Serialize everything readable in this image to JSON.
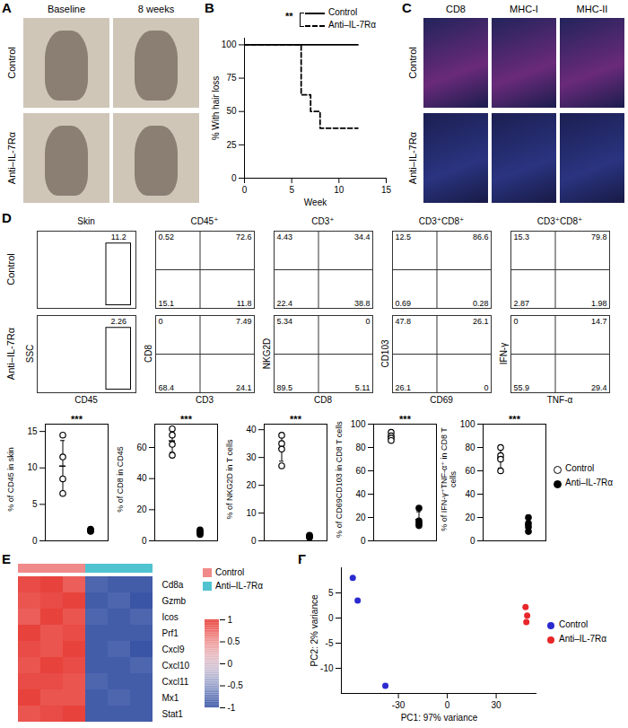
{
  "image_panels": [
    {
      "panel": "A",
      "columns": [
        "Baseline",
        "8 weeks"
      ],
      "rows": [
        "Control",
        "Anti–IL-7Rα"
      ]
    },
    {
      "panel": "C",
      "columns": [
        "CD8",
        "MHC-I",
        "MHC-II"
      ],
      "rows": [
        "Control",
        "Anti–IL-7Rα"
      ]
    }
  ],
  "chart_data": [
    {
      "type": "line",
      "panel": "B",
      "x_label": "Week",
      "y_label": "% With hair loss",
      "xlim": [
        0,
        15
      ],
      "xticks": [
        0,
        5,
        10,
        15
      ],
      "ylim": [
        0,
        105
      ],
      "yticks": [
        0,
        25,
        50,
        75,
        100
      ],
      "annotation": "**",
      "legend": "top-right",
      "series": [
        {
          "name": "Control",
          "line_style": "solid",
          "color": "#000000",
          "x": [
            0,
            12
          ],
          "values": [
            100,
            100
          ]
        },
        {
          "name": "Anti–IL-7Rα",
          "line_style": "dashed",
          "color": "#000000",
          "x": [
            0,
            6,
            7,
            8,
            12
          ],
          "values": [
            100,
            62.5,
            50,
            37.5,
            37.5
          ]
        }
      ]
    },
    {
      "type": "flow",
      "panel": "D",
      "tick_labels": false,
      "rows": [
        "Control",
        "Anti–IL-7Rα"
      ],
      "plots": [
        {
          "title": "Skin",
          "x_label": "CD45",
          "y_label": "SSC",
          "gate": [
            11.2,
            2.26
          ]
        },
        {
          "title": "CD45⁺",
          "x_label": "CD3",
          "y_label": "CD8",
          "quadrants": [
            [
              0.52,
              72.6,
              15.1,
              11.8
            ],
            [
              0,
              7.49,
              68.4,
              24.1
            ]
          ]
        },
        {
          "title": "CD3⁺",
          "x_label": "CD8",
          "y_label": "NKG2D",
          "quadrants": [
            [
              4.43,
              34.4,
              22.4,
              38.8
            ],
            [
              5.34,
              0,
              89.5,
              5.11
            ]
          ]
        },
        {
          "title": "CD3⁺CD8⁺",
          "x_label": "CD69",
          "y_label": "CD103",
          "quadrants": [
            [
              12.5,
              86.6,
              0.69,
              0.28
            ],
            [
              47.8,
              26.1,
              26.1,
              0
            ]
          ]
        },
        {
          "title": "CD3⁺CD8⁺",
          "x_label": "TNF-α",
          "y_label": "IFN-γ",
          "quadrants": [
            [
              15.3,
              79.8,
              2.87,
              1.98
            ],
            [
              0,
              14.7,
              55.9,
              29.4
            ]
          ]
        }
      ]
    },
    {
      "type": "dot",
      "y_label": "% of CD45 in skin",
      "ylim": [
        0,
        16
      ],
      "yticks": [
        0,
        5,
        10,
        15
      ],
      "annotation": "***",
      "series": [
        {
          "name": "Control",
          "marker": "open",
          "values": [
            14.5,
            11.5,
            8.5,
            6.5
          ],
          "mean": 10.25,
          "sd": 3.5
        },
        {
          "name": "Anti–IL-7Rα",
          "marker": "filled",
          "values": [
            1.5,
            1.3,
            1.4,
            1.6
          ],
          "mean": 1.45,
          "sd": 0.13
        }
      ]
    },
    {
      "type": "dot",
      "y_label": "% of CD8 in CD45",
      "ylim": [
        0,
        75
      ],
      "yticks": [
        0,
        20,
        40,
        60
      ],
      "annotation": "***",
      "series": [
        {
          "name": "Control",
          "marker": "open",
          "values": [
            72,
            68,
            62,
            55
          ],
          "mean": 64.25,
          "sd": 7.4
        },
        {
          "name": "Anti–IL-7Rα",
          "marker": "filled",
          "values": [
            5,
            4,
            6,
            7
          ],
          "mean": 5.5,
          "sd": 1.3
        }
      ]
    },
    {
      "type": "dot",
      "y_label": "% of NKG2D in T cells",
      "ylim": [
        0,
        42
      ],
      "yticks": [
        0,
        10,
        20,
        30,
        40
      ],
      "annotation": "***",
      "series": [
        {
          "name": "Control",
          "marker": "open",
          "values": [
            38,
            35,
            33,
            27
          ],
          "mean": 33.25,
          "sd": 4.6
        },
        {
          "name": "Anti–IL-7Rα",
          "marker": "filled",
          "values": [
            1.5,
            1.8,
            1.2,
            2
          ],
          "mean": 1.6,
          "sd": 0.35
        }
      ]
    },
    {
      "type": "dot",
      "y_label": "% of CD69CD103 in CD8 T cells",
      "ylim": [
        0,
        100
      ],
      "yticks": [
        0,
        20,
        40,
        60,
        80,
        100
      ],
      "annotation": "***",
      "series": [
        {
          "name": "Control",
          "marker": "open",
          "values": [
            93,
            90,
            88,
            86
          ],
          "mean": 89.25,
          "sd": 3
        },
        {
          "name": "Anti–IL-7Rα",
          "marker": "filled",
          "values": [
            28,
            17,
            15,
            13
          ],
          "mean": 18.25,
          "sd": 6.7
        }
      ]
    },
    {
      "type": "dot",
      "y_label": "% of IFN-γ⁺TNF-α⁺ in CD8 T cells",
      "ylim": [
        0,
        100
      ],
      "yticks": [
        0,
        20,
        40,
        60,
        80,
        100
      ],
      "annotation": "***",
      "legend": "right",
      "series": [
        {
          "name": "Control",
          "marker": "open",
          "values": [
            80,
            73,
            70,
            60
          ],
          "mean": 70.75,
          "sd": 8.3
        },
        {
          "name": "Anti–IL-7Rα",
          "marker": "filled",
          "values": [
            20,
            15,
            12,
            8
          ],
          "mean": 13.75,
          "sd": 5
        }
      ]
    },
    {
      "type": "heatmap",
      "panel": "E",
      "tick_labels": "y",
      "legend": "right",
      "rows": [
        "Cd8a",
        "Gzmb",
        "Icos",
        "Prf1",
        "Cxcl9",
        "Cxcl10",
        "Cxcl11",
        "Mx1",
        "Stat1"
      ],
      "column_groups": [
        "Control",
        "Control",
        "Control",
        "Anti–IL-7Rα",
        "Anti–IL-7Rα",
        "Anti–IL-7Rα"
      ],
      "groups": [
        {
          "name": "Control",
          "color": "#f08a8a"
        },
        {
          "name": "Anti–IL-7Rα",
          "color": "#4fc3cf"
        }
      ],
      "cells": [
        [
          0.95,
          1,
          0.85,
          -0.9,
          -0.95,
          -0.95
        ],
        [
          0.9,
          0.95,
          1,
          -0.95,
          -0.9,
          -1
        ],
        [
          0.85,
          1,
          0.9,
          -0.9,
          -0.95,
          -0.9
        ],
        [
          1,
          0.9,
          0.95,
          -0.95,
          -0.95,
          -0.95
        ],
        [
          0.95,
          0.9,
          1,
          -0.95,
          -0.9,
          -1
        ],
        [
          0.9,
          1,
          0.95,
          -0.95,
          -0.95,
          -0.9
        ],
        [
          0.95,
          0.95,
          0.9,
          -0.9,
          -0.95,
          -0.95
        ],
        [
          1,
          0.9,
          0.9,
          -0.95,
          -0.9,
          -0.95
        ],
        [
          0.9,
          0.95,
          1,
          -0.95,
          -0.95,
          -0.95
        ]
      ],
      "color_range": [
        -1,
        1
      ],
      "color_ticks": [
        -1,
        -0.5,
        0,
        0.5,
        1
      ]
    },
    {
      "type": "scatter",
      "panel": "F",
      "x_label": "PC1: 97% variance",
      "y_label": "PC2: 2% variance",
      "xlim": [
        -65,
        55
      ],
      "xticks": [
        -30,
        0,
        30
      ],
      "ylim": [
        -15,
        10
      ],
      "yticks": [
        -10,
        -5,
        0,
        5
      ],
      "legend": "right",
      "series": [
        {
          "name": "Control",
          "color": "#2a2ad0",
          "x": [
            -58,
            -55,
            -38
          ],
          "values": [
            8,
            3.5,
            -13.5
          ]
        },
        {
          "name": "Anti–IL-7Rα",
          "color": "#e8262a",
          "x": [
            48,
            49,
            48.5
          ],
          "values": [
            2.2,
            0.5,
            -0.8
          ]
        }
      ]
    }
  ]
}
